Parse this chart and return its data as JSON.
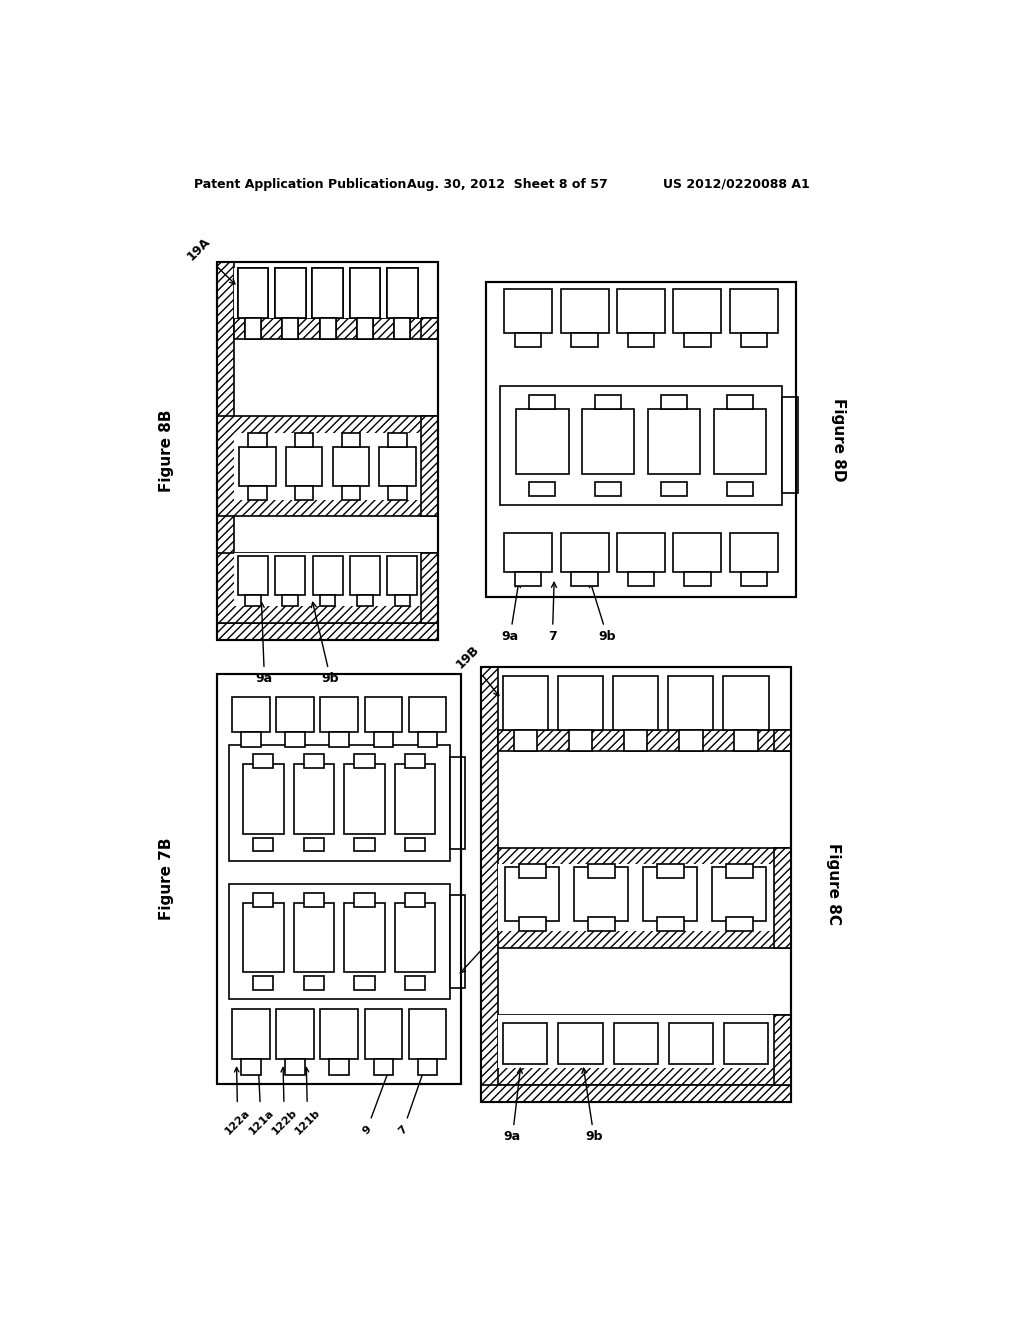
{
  "header_left": "Patent Application Publication",
  "header_mid": "Aug. 30, 2012  Sheet 8 of 57",
  "header_right": "US 2012/0220088 A1",
  "background": "#ffffff",
  "fig8B_label": "Figure 8B",
  "fig7B_label": "Figure 7B",
  "fig8C_label": "Figure 8C",
  "fig8D_label": "Figure 8D"
}
